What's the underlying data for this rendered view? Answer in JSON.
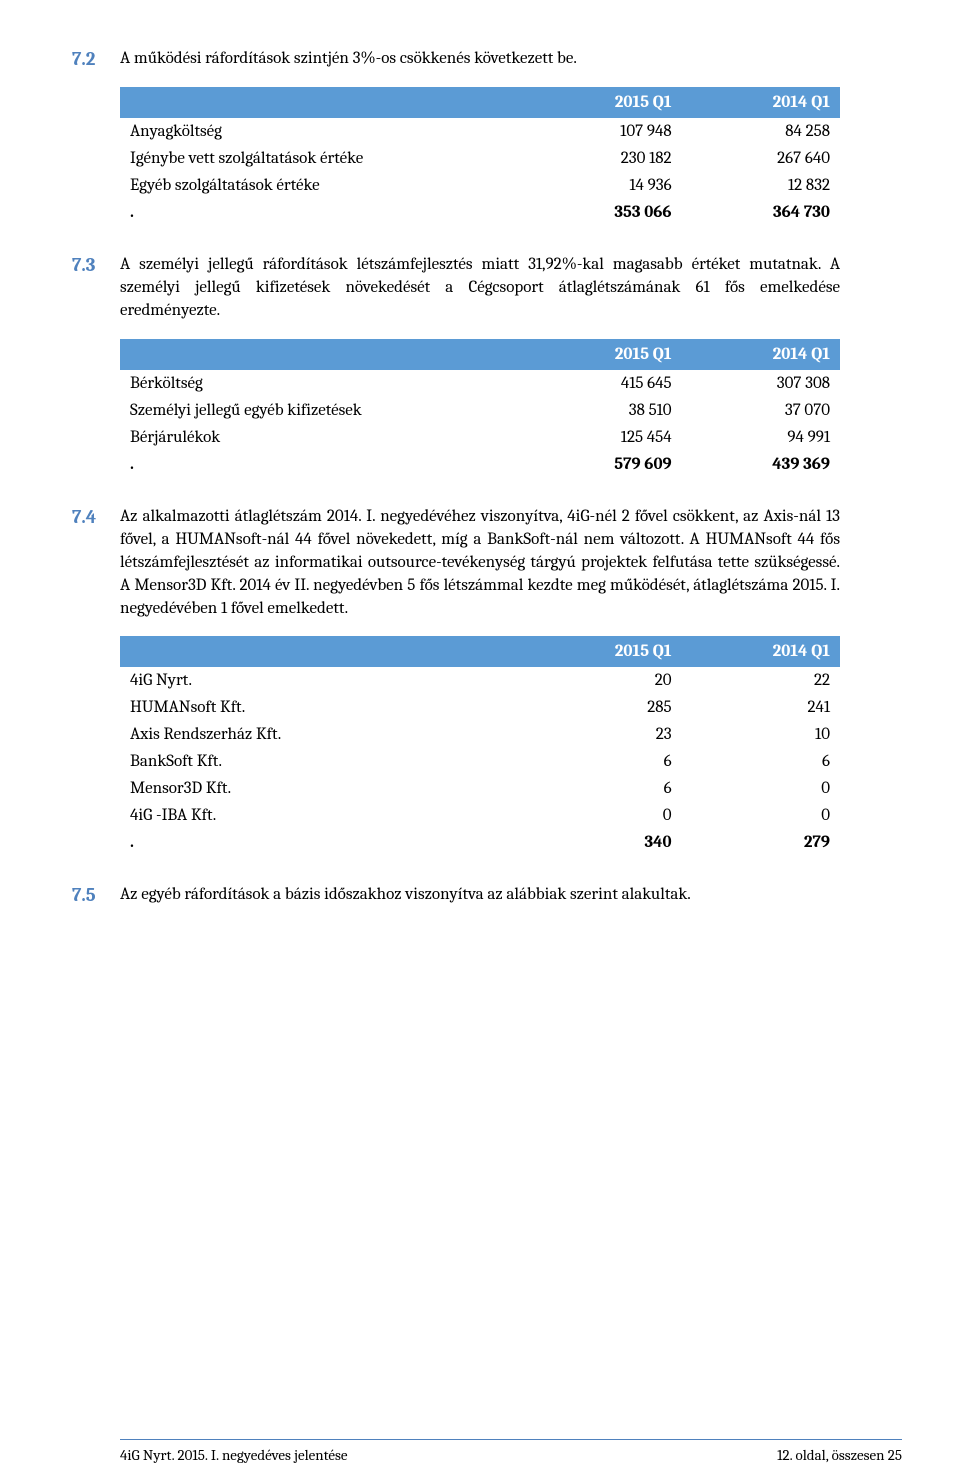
{
  "section72": {
    "num": "7.2",
    "text": "A működési ráfordítások szintjén 3%-os csökkenés következett be.",
    "table": {
      "header_bg": "#5b9bd5",
      "header_fg": "#ffffff",
      "columns": [
        "2015 Q1",
        "2014 Q1"
      ],
      "rows": [
        {
          "label": "Anyagköltség",
          "v1": "107 948",
          "v2": "84 258"
        },
        {
          "label": "Igénybe vett szolgáltatások értéke",
          "v1": "230 182",
          "v2": "267 640"
        },
        {
          "label": "Egyéb szolgáltatások értéke",
          "v1": "14 936",
          "v2": "12 832"
        }
      ],
      "total": {
        "label": ".",
        "v1": "353 066",
        "v2": "364 730"
      }
    }
  },
  "section73": {
    "num": "7.3",
    "text": "A személyi jellegű ráfordítások létszámfejlesztés miatt 31,92%-kal magasabb értéket mutatnak. A személyi jellegű kifizetések növekedését a Cégcsoport átlaglétszámának 61 fős emelkedése eredményezte.",
    "table": {
      "columns": [
        "2015 Q1",
        "2014 Q1"
      ],
      "rows": [
        {
          "label": "Bérköltség",
          "v1": "415 645",
          "v2": "307 308"
        },
        {
          "label": "Személyi jellegű egyéb kifizetések",
          "v1": "38 510",
          "v2": "37 070"
        },
        {
          "label": "Bérjárulékok",
          "v1": "125 454",
          "v2": "94 991"
        }
      ],
      "total": {
        "label": ".",
        "v1": "579 609",
        "v2": "439 369"
      }
    }
  },
  "section74": {
    "num": "7.4",
    "text": "Az alkalmazotti átlaglétszám 2014. I. negyedévéhez viszonyítva, 4iG-nél 2 fővel csökkent, az Axis-nál 13 fővel, a HUMANsoft-nál 44 fővel növekedett, míg a BankSoft-nál nem változott. A HUMANsoft 44 fős létszámfejlesztését az informatikai outsource-tevékenység tárgyú projektek felfutása tette szükségessé. A Mensor3D Kft. 2014 év II. negyedévben 5 fős létszámmal kezdte meg működését, átlaglétszáma 2015. I. negyedévében 1 fővel emelkedett.",
    "table": {
      "columns": [
        "2015 Q1",
        "2014 Q1"
      ],
      "rows": [
        {
          "label": "4iG Nyrt.",
          "v1": "20",
          "v2": "22"
        },
        {
          "label": "HUMANsoft Kft.",
          "v1": "285",
          "v2": "241"
        },
        {
          "label": "Axis Rendszerház Kft.",
          "v1": "23",
          "v2": "10"
        },
        {
          "label": "BankSoft Kft.",
          "v1": "6",
          "v2": "6"
        },
        {
          "label": "Mensor3D Kft.",
          "v1": "6",
          "v2": "0"
        },
        {
          "label": "4iG -IBA Kft.",
          "v1": "0",
          "v2": "0"
        }
      ],
      "total": {
        "label": ".",
        "v1": "340",
        "v2": "279"
      }
    }
  },
  "section75": {
    "num": "7.5",
    "text": "Az egyéb ráfordítások a bázis időszakhoz viszonyítva az alábbiak szerint alakultak."
  },
  "footer": {
    "rule_color": "#4f81bd",
    "left": "4iG Nyrt. 2015. I. negyedéves jelentése",
    "right": "12. oldal, összesen 25"
  }
}
